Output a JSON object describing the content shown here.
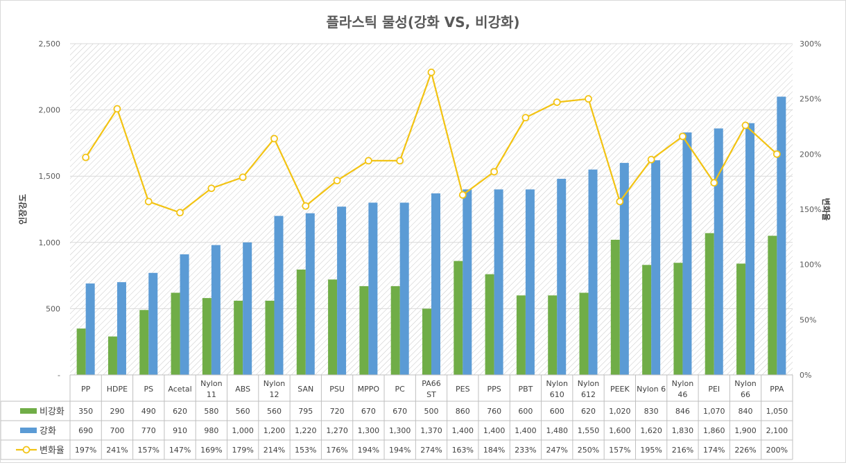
{
  "chart_data": {
    "type": "bar",
    "title": "플라스틱 물성(강화 VS, 비강화)",
    "ylabel": "인장강도",
    "y2label": "변화율",
    "ylim": [
      0,
      2500
    ],
    "y2lim": [
      0,
      300
    ],
    "y_ticks": [
      "-",
      "500",
      "1,000",
      "1,500",
      "2,000",
      "2,500"
    ],
    "y2_ticks": [
      "0%",
      "50%",
      "100%",
      "150%",
      "200%",
      "250%",
      "300%"
    ],
    "categories": [
      "PP",
      "HDPE",
      "PS",
      "Acetal",
      "Nylon 11",
      "ABS",
      "Nylon 12",
      "SAN",
      "PSU",
      "MPPO",
      "PC",
      "PA66 ST",
      "PES",
      "PPS",
      "PBT",
      "Nylon 610",
      "Nylon 612",
      "PEEK",
      "Nylon 6",
      "Nylon 46",
      "PEI",
      "Nylon 66",
      "PPA"
    ],
    "category_lines": [
      [
        "PP"
      ],
      [
        "HDPE"
      ],
      [
        "PS"
      ],
      [
        "Acetal"
      ],
      [
        "Nylon",
        "11"
      ],
      [
        "ABS"
      ],
      [
        "Nylon",
        "12"
      ],
      [
        "SAN"
      ],
      [
        "PSU"
      ],
      [
        "MPPO"
      ],
      [
        "PC"
      ],
      [
        "PA66",
        "ST"
      ],
      [
        "PES"
      ],
      [
        "PPS"
      ],
      [
        "PBT"
      ],
      [
        "Nylon",
        "610"
      ],
      [
        "Nylon",
        "612"
      ],
      [
        "PEEK"
      ],
      [
        "Nylon 6"
      ],
      [
        "Nylon",
        "46"
      ],
      [
        "PEI"
      ],
      [
        "Nylon",
        "66"
      ],
      [
        "PPA"
      ]
    ],
    "series": [
      {
        "name": "비강화",
        "kind": "bar",
        "axis": "left",
        "color": "#70ad47",
        "values": [
          350,
          290,
          490,
          620,
          580,
          560,
          560,
          795,
          720,
          670,
          670,
          500,
          860,
          760,
          600,
          600,
          620,
          1020,
          830,
          846,
          1070,
          840,
          1050
        ],
        "labels": [
          "350",
          "290",
          "490",
          "620",
          "580",
          "560",
          "560",
          "795",
          "720",
          "670",
          "670",
          "500",
          "860",
          "760",
          "600",
          "600",
          "620",
          "1,020",
          "830",
          "846",
          "1,070",
          "840",
          "1,050"
        ]
      },
      {
        "name": "강화",
        "kind": "bar",
        "axis": "left",
        "color": "#5b9bd5",
        "values": [
          690,
          700,
          770,
          910,
          980,
          1000,
          1200,
          1220,
          1270,
          1300,
          1300,
          1370,
          1400,
          1400,
          1400,
          1480,
          1550,
          1600,
          1620,
          1830,
          1860,
          1900,
          2100
        ],
        "labels": [
          "690",
          "700",
          "770",
          "910",
          "980",
          "1,000",
          "1,200",
          "1,220",
          "1,270",
          "1,300",
          "1,300",
          "1,370",
          "1,400",
          "1,400",
          "1,400",
          "1,480",
          "1,550",
          "1,600",
          "1,620",
          "1,830",
          "1,860",
          "1,900",
          "2,100"
        ]
      },
      {
        "name": "변화율",
        "kind": "line",
        "axis": "right",
        "color": "#f2c314",
        "values": [
          197,
          241,
          157,
          147,
          169,
          179,
          214,
          153,
          176,
          194,
          194,
          274,
          163,
          184,
          233,
          247,
          250,
          157,
          195,
          216,
          174,
          226,
          200
        ],
        "labels": [
          "197%",
          "241%",
          "157%",
          "147%",
          "169%",
          "179%",
          "214%",
          "153%",
          "176%",
          "194%",
          "194%",
          "274%",
          "163%",
          "184%",
          "233%",
          "247%",
          "250%",
          "157%",
          "195%",
          "216%",
          "174%",
          "226%",
          "200%"
        ]
      }
    ],
    "grid": true,
    "legend": "data table"
  }
}
